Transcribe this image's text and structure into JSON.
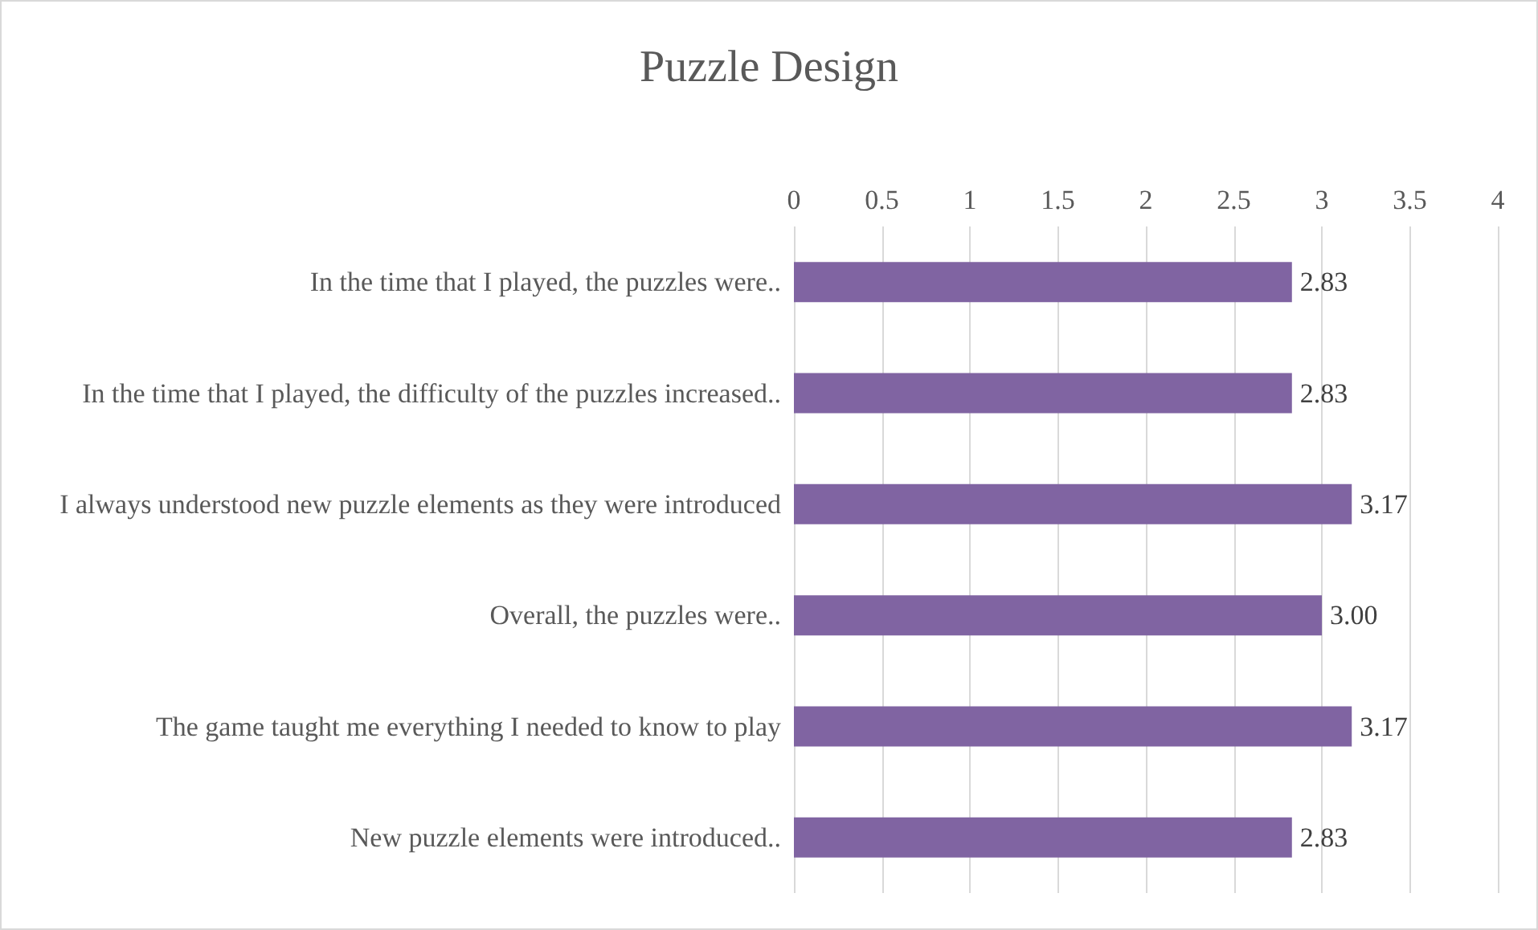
{
  "chart_data": {
    "type": "bar",
    "orientation": "horizontal",
    "title": "Puzzle Design",
    "categories": [
      "In the time that I played, the puzzles were..",
      "In the time that I played, the difficulty of the puzzles increased..",
      "I always understood new puzzle elements as they were introduced",
      "Overall, the puzzles were..",
      "The game taught me everything I needed to know to play",
      "New puzzle elements were introduced.."
    ],
    "values": [
      2.83,
      2.83,
      3.17,
      3.0,
      3.17,
      2.83
    ],
    "value_labels": [
      "2.83",
      "2.83",
      "3.17",
      "3.00",
      "3.17",
      "2.83"
    ],
    "color": "#8064a2",
    "xlim": [
      0,
      4
    ],
    "xticks": [
      0,
      0.5,
      1,
      1.5,
      2,
      2.5,
      3,
      3.5,
      4
    ],
    "grid": "x"
  }
}
